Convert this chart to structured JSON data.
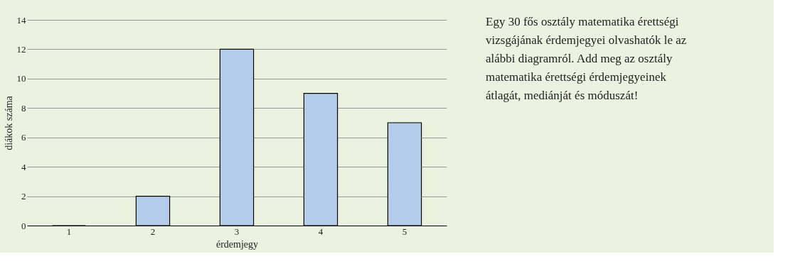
{
  "chart_data": {
    "type": "bar",
    "xlabel": "érdemjegy",
    "ylabel": "diákok száma",
    "categories": [
      "1",
      "2",
      "3",
      "4",
      "5"
    ],
    "values": [
      0,
      2,
      12,
      9,
      7
    ],
    "color": "#b4cbe9",
    "ylim": [
      0,
      14
    ],
    "yticks": [
      0,
      2,
      4,
      6,
      8,
      10,
      12,
      14
    ],
    "grid": "y",
    "annotations": [
      "Egy 30 fős osztály matematika érettségi vizsgájának érdemjegyei olvashatók le az alábbi diagramról. Add meg az osztály matematika érettségi érdemjegyeinek átlagát, mediánját és móduszát!"
    ]
  }
}
